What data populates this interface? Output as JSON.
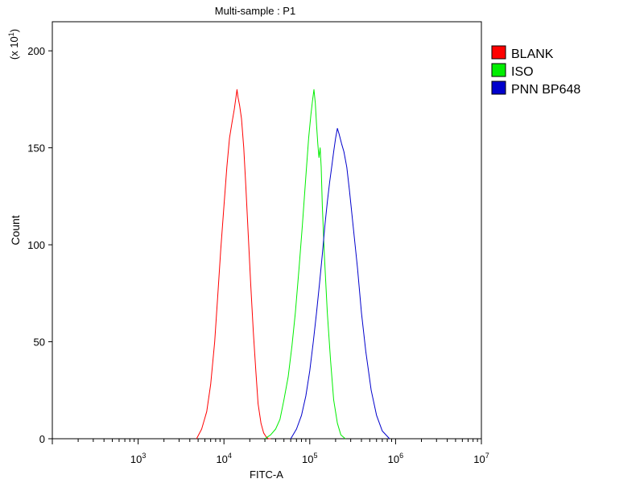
{
  "chart_data": {
    "type": "line",
    "title": "Multi-sample : P1",
    "xlabel": "FITC-A",
    "ylabel": "Count",
    "y_multiplier_label": "(x 10",
    "y_multiplier_exp": "1",
    "x_scale": "log",
    "xlim": [
      100,
      10000000
    ],
    "ylim": [
      0,
      215
    ],
    "y_ticks": [
      0,
      50,
      100,
      150,
      200
    ],
    "x_ticks": [
      {
        "value": 1000,
        "base": "10",
        "exp": "3"
      },
      {
        "value": 10000,
        "base": "10",
        "exp": "4"
      },
      {
        "value": 100000,
        "base": "10",
        "exp": "5"
      },
      {
        "value": 1000000,
        "base": "10",
        "exp": "6"
      },
      {
        "value": 10000000,
        "base": "10",
        "exp": "7"
      }
    ],
    "grid": false,
    "legend_position": "right",
    "series": [
      {
        "name": "BLANK",
        "color": "#ff0000",
        "x": [
          4800,
          5500,
          6300,
          7000,
          7800,
          8500,
          9200,
          10000,
          10800,
          11600,
          12400,
          13200,
          13800,
          14200,
          14600,
          15200,
          16000,
          17000,
          18000,
          19200,
          20500,
          22000,
          23500,
          25000,
          27000,
          29000,
          31000,
          33000,
          35000
        ],
        "y": [
          0,
          5,
          14,
          28,
          50,
          75,
          98,
          120,
          140,
          155,
          163,
          170,
          176,
          180,
          176,
          172,
          165,
          150,
          130,
          105,
          80,
          55,
          35,
          18,
          8,
          3,
          1,
          0,
          0
        ]
      },
      {
        "name": "ISO",
        "color": "#00ee00",
        "x": [
          30000,
          35000,
          40000,
          45000,
          50000,
          56000,
          62000,
          68000,
          75000,
          82000,
          90000,
          97000,
          103000,
          108000,
          112000,
          116000,
          120000,
          124000,
          128000,
          132000,
          136000,
          140000,
          148000,
          160000,
          175000,
          190000,
          210000,
          230000,
          260000
        ],
        "y": [
          0,
          2,
          5,
          10,
          20,
          32,
          48,
          65,
          88,
          110,
          135,
          155,
          167,
          175,
          180,
          173,
          162,
          152,
          145,
          150,
          140,
          120,
          95,
          65,
          40,
          20,
          8,
          2,
          0
        ]
      },
      {
        "name": "PNN BP648",
        "color": "#0000cc",
        "x": [
          60000,
          70000,
          80000,
          90000,
          100000,
          110000,
          120000,
          130000,
          140000,
          150000,
          160000,
          170000,
          180000,
          190000,
          200000,
          210000,
          220000,
          235000,
          250000,
          270000,
          290000,
          320000,
          360000,
          400000,
          450000,
          520000,
          600000,
          700000,
          850000
        ],
        "y": [
          0,
          5,
          12,
          22,
          35,
          50,
          65,
          80,
          95,
          110,
          122,
          132,
          140,
          148,
          155,
          160,
          157,
          152,
          148,
          140,
          128,
          110,
          88,
          65,
          45,
          25,
          12,
          4,
          0
        ]
      }
    ]
  }
}
